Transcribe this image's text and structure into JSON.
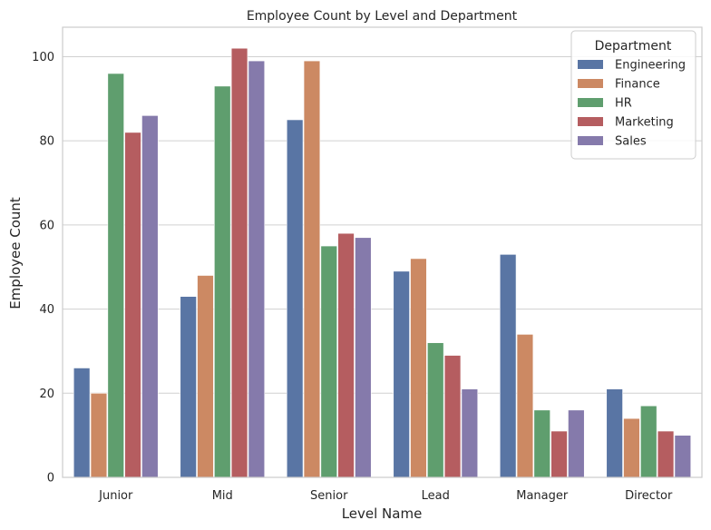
{
  "chart_data": {
    "type": "bar",
    "title": "Employee Count by Level and Department",
    "xlabel": "Level Name",
    "ylabel": "Employee Count",
    "categories": [
      "Junior",
      "Mid",
      "Senior",
      "Lead",
      "Manager",
      "Director"
    ],
    "series": [
      {
        "name": "Engineering",
        "color": "#5975a4",
        "values": [
          26,
          43,
          85,
          49,
          53,
          21
        ]
      },
      {
        "name": "Finance",
        "color": "#cc8963",
        "values": [
          20,
          48,
          99,
          52,
          34,
          14
        ]
      },
      {
        "name": "HR",
        "color": "#5f9e6e",
        "values": [
          96,
          93,
          55,
          32,
          16,
          17
        ]
      },
      {
        "name": "Marketing",
        "color": "#b55d60",
        "values": [
          82,
          102,
          58,
          29,
          11,
          11
        ]
      },
      {
        "name": "Sales",
        "color": "#857aab",
        "values": [
          86,
          99,
          57,
          21,
          16,
          10
        ]
      }
    ],
    "ylim": [
      0,
      107
    ],
    "yticks": [
      0,
      20,
      40,
      60,
      80,
      100
    ],
    "grid": true,
    "legend": {
      "title": "Department",
      "placement": "top-right"
    }
  }
}
